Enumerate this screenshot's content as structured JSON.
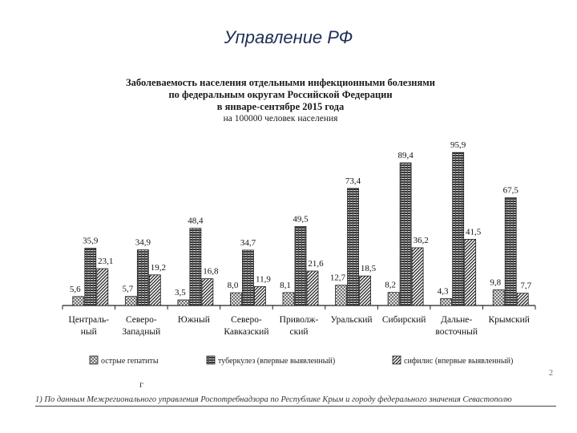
{
  "slide": {
    "title": "Управление РФ",
    "footnote": "1) По данным Межрегионального управления Роспотребнадзора по Республике Крым и городу федерального значения Севастополю",
    "corner_mark": "г",
    "side_mark": "2"
  },
  "chart_data": {
    "type": "bar",
    "title": "Заболеваемость населения отдельными инфекционными болезнями",
    "title_line2": "по федеральным округам Российской Федерации",
    "subtitle": "в январе-сентябре 2015 года",
    "subtitle2": "на 100000 человек населения",
    "categories": [
      [
        "Централь-",
        "ный"
      ],
      [
        "Северо-",
        "Западный"
      ],
      [
        "Южный"
      ],
      [
        "Северо-",
        "Кавказский"
      ],
      [
        "Приволж-",
        "ский"
      ],
      [
        "Уральский"
      ],
      [
        "Сибирский"
      ],
      [
        "Дальне-",
        "восточный"
      ],
      [
        "Крымский"
      ]
    ],
    "series": [
      {
        "name": "острые гепатиты",
        "values": [
          5.6,
          5.7,
          3.5,
          8.0,
          8.1,
          12.7,
          8.2,
          4.3,
          9.8
        ],
        "labels": [
          "5,6",
          "5,7",
          "3,5",
          "8,0",
          "8,1",
          "12,7",
          "8,2",
          "4,3",
          "9,8"
        ],
        "pattern": "grid"
      },
      {
        "name": "туберкулез (впервые выявленный)",
        "values": [
          35.9,
          34.9,
          48.4,
          34.7,
          49.5,
          73.4,
          89.4,
          95.9,
          67.5
        ],
        "labels": [
          "35,9",
          "34,9",
          "48,4",
          "34,7",
          "49,5",
          "73,4",
          "89,4",
          "95,9",
          "67,5"
        ],
        "pattern": "hstripes"
      },
      {
        "name": "сифилис (впервые выявленный)",
        "values": [
          23.1,
          19.2,
          16.8,
          11.9,
          21.6,
          18.5,
          36.2,
          41.5,
          7.7
        ],
        "labels": [
          "23,1",
          "19,2",
          "16,8",
          "11,9",
          "21,6",
          "18,5",
          "36,2",
          "41,5",
          "7,7"
        ],
        "pattern": "diag"
      }
    ],
    "ylim": [
      0,
      100
    ],
    "grid": false,
    "legend_position": "bottom"
  }
}
